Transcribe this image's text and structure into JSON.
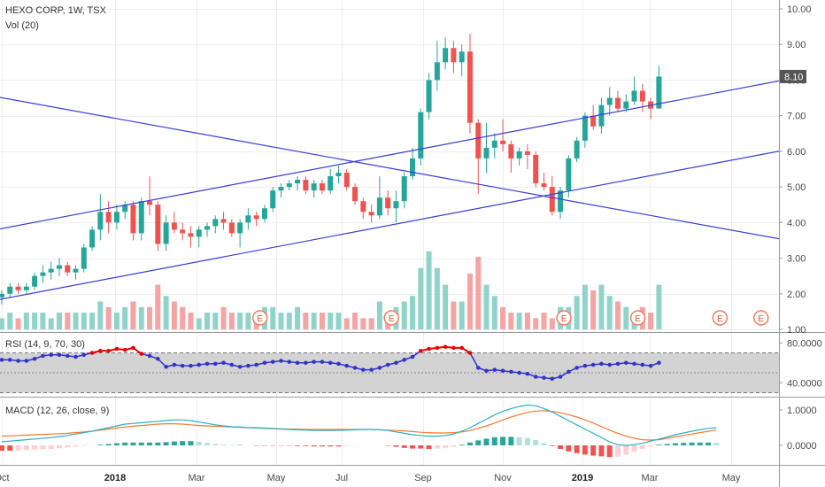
{
  "header": {
    "title": "HEXO CORP, 1W, TSX",
    "volume_label": "Vol (20)",
    "rsi_label": "RSI (14, 9, 70, 30)",
    "macd_label": "MACD (12, 26, close, 9)",
    "last_price": "8.10",
    "earnings_marker": "E"
  },
  "colors": {
    "up": "#26a69a",
    "down": "#ef5350",
    "up_vol": "#8fd3cb",
    "down_vol": "#f5a3a3",
    "trendline": "#3b3bd6",
    "rsi_line": "#3333cc",
    "rsi_ob": "#ee0000",
    "macd_line": "#2ab0c8",
    "signal_line": "#f07b2e",
    "price_badge": "#555555"
  },
  "chart_data": [
    {
      "type": "candlestick",
      "title": "HEXO CORP, 1W, TSX",
      "x_ticks": [
        "Oct",
        "2018",
        "Mar",
        "May",
        "Jul",
        "Sep",
        "Nov",
        "2019",
        "Mar",
        "May"
      ],
      "bold_ticks": [
        "2018",
        "2019"
      ],
      "y_ticks": [
        "10.00",
        "9.00",
        "8.00",
        "7.00",
        "6.00",
        "5.00",
        "4.00",
        "3.00",
        "2.00",
        "1.00"
      ],
      "ylim": [
        1,
        10.2
      ],
      "ohlc": [
        [
          1.9,
          2.1,
          1.7,
          2.0
        ],
        [
          2.0,
          2.3,
          1.9,
          2.2
        ],
        [
          2.2,
          2.3,
          2.0,
          2.1
        ],
        [
          2.1,
          2.3,
          2.0,
          2.2
        ],
        [
          2.2,
          2.6,
          2.1,
          2.5
        ],
        [
          2.5,
          2.8,
          2.3,
          2.6
        ],
        [
          2.6,
          2.9,
          2.4,
          2.7
        ],
        [
          2.7,
          3.0,
          2.5,
          2.8
        ],
        [
          2.8,
          2.9,
          2.5,
          2.6
        ],
        [
          2.6,
          2.8,
          2.4,
          2.7
        ],
        [
          2.7,
          3.4,
          2.6,
          3.3
        ],
        [
          3.3,
          3.9,
          3.2,
          3.8
        ],
        [
          3.8,
          4.8,
          3.5,
          4.3
        ],
        [
          4.3,
          4.6,
          3.7,
          4.0
        ],
        [
          4.0,
          4.5,
          3.8,
          4.3
        ],
        [
          4.3,
          4.6,
          4.1,
          4.5
        ],
        [
          4.5,
          4.6,
          3.5,
          3.7
        ],
        [
          3.7,
          4.7,
          3.5,
          4.6
        ],
        [
          4.6,
          5.3,
          4.2,
          4.5
        ],
        [
          4.5,
          4.6,
          3.2,
          3.4
        ],
        [
          3.4,
          4.2,
          3.2,
          4.0
        ],
        [
          4.0,
          4.3,
          3.7,
          3.8
        ],
        [
          3.8,
          4.0,
          3.5,
          3.7
        ],
        [
          3.7,
          3.9,
          3.3,
          3.6
        ],
        [
          3.6,
          3.9,
          3.3,
          3.8
        ],
        [
          3.8,
          4.0,
          3.6,
          3.9
        ],
        [
          3.9,
          4.2,
          3.7,
          4.1
        ],
        [
          4.1,
          4.3,
          3.8,
          4.0
        ],
        [
          4.0,
          4.1,
          3.6,
          3.7
        ],
        [
          3.7,
          4.1,
          3.3,
          4.0
        ],
        [
          4.0,
          4.4,
          3.8,
          4.2
        ],
        [
          4.2,
          4.3,
          3.9,
          4.1
        ],
        [
          4.1,
          4.5,
          4.0,
          4.4
        ],
        [
          4.4,
          5.0,
          4.3,
          4.9
        ],
        [
          4.9,
          5.1,
          4.7,
          5.0
        ],
        [
          5.0,
          5.2,
          4.9,
          5.1
        ],
        [
          5.1,
          5.3,
          4.9,
          5.2
        ],
        [
          5.2,
          5.3,
          4.8,
          4.9
        ],
        [
          4.9,
          5.2,
          4.7,
          5.1
        ],
        [
          5.1,
          5.2,
          4.8,
          4.9
        ],
        [
          4.9,
          5.5,
          4.8,
          5.3
        ],
        [
          5.3,
          5.6,
          5.1,
          5.4
        ],
        [
          5.4,
          5.5,
          4.9,
          5.0
        ],
        [
          5.0,
          5.1,
          4.5,
          4.6
        ],
        [
          4.6,
          4.7,
          4.1,
          4.3
        ],
        [
          4.3,
          4.5,
          4.0,
          4.2
        ],
        [
          4.2,
          5.3,
          4.1,
          4.7
        ],
        [
          4.7,
          4.9,
          4.2,
          4.4
        ],
        [
          4.4,
          4.9,
          4.0,
          4.6
        ],
        [
          4.6,
          5.4,
          4.4,
          5.3
        ],
        [
          5.3,
          6.1,
          5.2,
          5.8
        ],
        [
          5.8,
          7.2,
          5.6,
          7.1
        ],
        [
          7.1,
          8.2,
          6.9,
          8.0
        ],
        [
          8.0,
          9.1,
          7.7,
          8.5
        ],
        [
          8.5,
          9.2,
          8.3,
          8.9
        ],
        [
          8.9,
          9.1,
          8.2,
          8.5
        ],
        [
          8.5,
          9.0,
          8.1,
          8.8
        ],
        [
          8.8,
          9.3,
          6.5,
          6.8
        ],
        [
          6.8,
          6.9,
          4.8,
          5.8
        ],
        [
          5.8,
          6.8,
          5.4,
          6.1
        ],
        [
          6.1,
          6.5,
          5.8,
          6.3
        ],
        [
          6.3,
          6.9,
          6.0,
          6.2
        ],
        [
          6.2,
          6.3,
          5.4,
          5.8
        ],
        [
          5.8,
          6.1,
          5.6,
          6.0
        ],
        [
          6.0,
          6.2,
          5.5,
          5.9
        ],
        [
          5.9,
          6.0,
          5.0,
          5.1
        ],
        [
          5.1,
          5.4,
          4.9,
          5.0
        ],
        [
          5.0,
          5.3,
          4.2,
          4.3
        ],
        [
          4.3,
          5.0,
          4.1,
          4.9
        ],
        [
          4.9,
          5.9,
          4.7,
          5.8
        ],
        [
          5.8,
          6.4,
          5.7,
          6.3
        ],
        [
          6.3,
          7.1,
          6.1,
          7.0
        ],
        [
          7.0,
          7.3,
          6.6,
          6.7
        ],
        [
          6.7,
          7.5,
          6.5,
          7.3
        ],
        [
          7.3,
          7.8,
          7.0,
          7.5
        ],
        [
          7.5,
          7.7,
          7.1,
          7.2
        ],
        [
          7.2,
          7.6,
          7.1,
          7.4
        ],
        [
          7.4,
          8.1,
          7.3,
          7.7
        ],
        [
          7.7,
          7.9,
          7.1,
          7.4
        ],
        [
          7.4,
          7.5,
          6.9,
          7.2
        ],
        [
          7.2,
          8.4,
          7.2,
          8.1
        ]
      ],
      "volume": [
        2,
        3,
        2,
        3,
        3,
        3,
        2,
        3,
        3,
        3,
        3,
        3,
        5,
        4,
        3,
        4,
        5,
        4,
        4,
        8,
        6,
        5,
        4,
        3,
        2,
        3,
        3,
        4,
        3,
        3,
        3,
        3,
        4,
        4,
        3,
        3,
        4,
        3,
        3,
        3,
        3,
        3,
        2,
        3,
        2,
        2,
        5,
        3,
        4,
        5,
        6,
        11,
        14,
        11,
        8,
        5,
        5,
        10,
        13,
        8,
        6,
        4,
        3,
        3,
        3,
        2,
        3,
        2,
        4,
        4,
        6,
        8,
        7,
        8,
        6,
        5,
        4,
        3,
        4,
        3,
        8
      ],
      "earnings_markers_at": [
        31,
        47,
        68,
        77,
        87,
        92
      ],
      "trendlines": [
        {
          "x1": -3,
          "y1": 3.7,
          "x2": 110,
          "y2": 8.65
        },
        {
          "x1": -3,
          "y1": 1.72,
          "x2": 110,
          "y2": 6.68
        },
        {
          "x1": -3,
          "y1": 7.63,
          "x2": 110,
          "y2": 2.9
        }
      ]
    },
    {
      "type": "line",
      "title": "RSI (14, 9, 70, 30)",
      "y_ticks": [
        "80.0000",
        "40.0000"
      ],
      "ylim": [
        26,
        90
      ],
      "bands": [
        30,
        70
      ],
      "midline": 50,
      "values": [
        63,
        63,
        62,
        62,
        64,
        67,
        68,
        68,
        67,
        66,
        68,
        70,
        72,
        72,
        74,
        73,
        75,
        69,
        67,
        64,
        56,
        58,
        57,
        57,
        58,
        59,
        59,
        60,
        58,
        56,
        57,
        58,
        60,
        61,
        62,
        61,
        60,
        60,
        61,
        61,
        60,
        59,
        57,
        55,
        53,
        53,
        55,
        58,
        60,
        63,
        66,
        72,
        74,
        75,
        76,
        75,
        75,
        70,
        55,
        52,
        53,
        52,
        51,
        50,
        49,
        46,
        45,
        44,
        46,
        51,
        55,
        57,
        58,
        59,
        58,
        59,
        60,
        59,
        58,
        57,
        60
      ]
    },
    {
      "type": "line",
      "title": "MACD (12, 26, close, 9)",
      "y_ticks": [
        "1.0000",
        "0.0000"
      ],
      "ylim": [
        -0.55,
        1.35
      ],
      "macd": [
        0.1,
        0.12,
        0.14,
        0.16,
        0.18,
        0.2,
        0.22,
        0.25,
        0.28,
        0.32,
        0.36,
        0.4,
        0.45,
        0.5,
        0.55,
        0.6,
        0.62,
        0.64,
        0.66,
        0.68,
        0.7,
        0.72,
        0.72,
        0.7,
        0.66,
        0.62,
        0.58,
        0.55,
        0.53,
        0.52,
        0.5,
        0.49,
        0.48,
        0.47,
        0.46,
        0.45,
        0.44,
        0.43,
        0.42,
        0.42,
        0.42,
        0.42,
        0.43,
        0.44,
        0.45,
        0.45,
        0.44,
        0.42,
        0.38,
        0.34,
        0.3,
        0.28,
        0.26,
        0.26,
        0.28,
        0.32,
        0.4,
        0.5,
        0.62,
        0.74,
        0.86,
        0.96,
        1.04,
        1.1,
        1.14,
        1.12,
        1.04,
        0.94,
        0.82,
        0.7,
        0.58,
        0.46,
        0.34,
        0.22,
        0.1,
        0.02,
        0.0,
        0.02,
        0.06,
        0.12,
        0.18,
        0.24,
        0.3,
        0.35,
        0.4,
        0.44,
        0.48,
        0.5
      ],
      "signal": [
        0.26,
        0.27,
        0.28,
        0.29,
        0.3,
        0.31,
        0.32,
        0.33,
        0.34,
        0.36,
        0.38,
        0.4,
        0.43,
        0.46,
        0.49,
        0.52,
        0.54,
        0.56,
        0.58,
        0.6,
        0.61,
        0.61,
        0.6,
        0.58,
        0.56,
        0.55,
        0.54,
        0.53,
        0.52,
        0.51,
        0.5,
        0.5,
        0.49,
        0.48,
        0.47,
        0.46,
        0.46,
        0.45,
        0.45,
        0.45,
        0.45,
        0.45,
        0.45,
        0.45,
        0.45,
        0.45,
        0.44,
        0.43,
        0.42,
        0.41,
        0.39,
        0.37,
        0.36,
        0.35,
        0.35,
        0.36,
        0.38,
        0.42,
        0.48,
        0.55,
        0.63,
        0.72,
        0.8,
        0.87,
        0.93,
        0.97,
        0.98,
        0.96,
        0.92,
        0.87,
        0.8,
        0.72,
        0.63,
        0.53,
        0.43,
        0.34,
        0.26,
        0.2,
        0.16,
        0.15,
        0.16,
        0.2,
        0.24,
        0.28,
        0.32,
        0.36,
        0.4,
        0.43
      ],
      "histogram": [
        -0.15,
        -0.15,
        -0.14,
        -0.13,
        -0.12,
        -0.11,
        -0.1,
        -0.08,
        -0.06,
        -0.04,
        -0.02,
        0.0,
        0.02,
        0.04,
        0.06,
        0.08,
        0.08,
        0.08,
        0.08,
        0.08,
        0.09,
        0.11,
        0.12,
        0.12,
        0.1,
        0.07,
        0.04,
        0.02,
        0.01,
        0.01,
        0.0,
        -0.01,
        -0.01,
        -0.01,
        -0.01,
        -0.01,
        -0.02,
        -0.02,
        -0.03,
        -0.03,
        -0.03,
        -0.03,
        -0.02,
        -0.01,
        0.0,
        0.0,
        0.0,
        -0.01,
        -0.04,
        -0.07,
        -0.09,
        -0.09,
        -0.1,
        -0.09,
        -0.07,
        -0.04,
        0.02,
        0.08,
        0.14,
        0.19,
        0.23,
        0.24,
        0.24,
        0.23,
        0.21,
        0.15,
        0.06,
        -0.02,
        -0.1,
        -0.17,
        -0.22,
        -0.26,
        -0.29,
        -0.31,
        -0.33,
        -0.32,
        -0.26,
        -0.18,
        -0.1,
        -0.03,
        0.02,
        0.04,
        0.06,
        0.07,
        0.08,
        0.08,
        0.08,
        0.07
      ]
    }
  ]
}
